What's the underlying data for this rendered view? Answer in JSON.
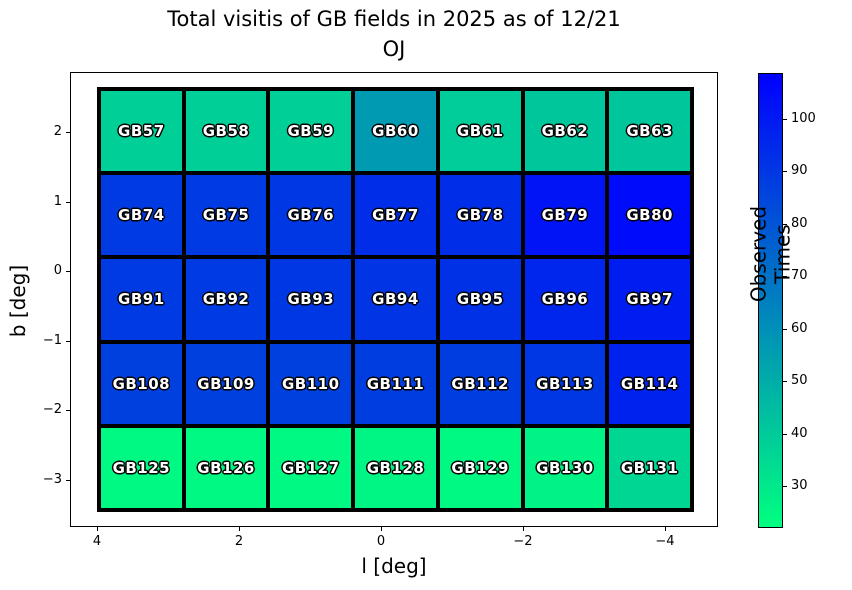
{
  "chart_data": {
    "type": "heatmap",
    "title_line1": "Total visitis of GB fields in 2025 as of 12/21",
    "title_line2": "OJ",
    "xlabel": "l [deg]",
    "ylabel": "b [deg]",
    "colorbar_label": "Observed Times",
    "colormap": "winter_r",
    "vmin": 22,
    "vmax": 108.7,
    "x_axis_ticks": [
      "4",
      "2",
      "0",
      "−2",
      "−4"
    ],
    "y_axis_ticks": [
      "2",
      "1",
      "0",
      "−1",
      "−2",
      "−3"
    ],
    "colorbar_ticks": [
      100,
      90,
      80,
      70,
      60,
      50,
      40,
      30
    ],
    "colorbar_top_color": "#0000ff",
    "colorbar_bottom_color": "#00ff80",
    "rows": [
      {
        "cells": [
          {
            "label": "GB57",
            "value": 38
          },
          {
            "label": "GB58",
            "value": 38
          },
          {
            "label": "GB59",
            "value": 38
          },
          {
            "label": "GB60",
            "value": 56
          },
          {
            "label": "GB61",
            "value": 39
          },
          {
            "label": "GB62",
            "value": 41
          },
          {
            "label": "GB63",
            "value": 41
          }
        ]
      },
      {
        "cells": [
          {
            "label": "GB74",
            "value": 89
          },
          {
            "label": "GB75",
            "value": 89
          },
          {
            "label": "GB76",
            "value": 90
          },
          {
            "label": "GB77",
            "value": 93
          },
          {
            "label": "GB78",
            "value": 93
          },
          {
            "label": "GB79",
            "value": 102
          },
          {
            "label": "GB80",
            "value": 105
          }
        ]
      },
      {
        "cells": [
          {
            "label": "GB91",
            "value": 89
          },
          {
            "label": "GB92",
            "value": 89
          },
          {
            "label": "GB93",
            "value": 90
          },
          {
            "label": "GB94",
            "value": 91
          },
          {
            "label": "GB95",
            "value": 92
          },
          {
            "label": "GB96",
            "value": 96
          },
          {
            "label": "GB97",
            "value": 99
          }
        ]
      },
      {
        "cells": [
          {
            "label": "GB108",
            "value": 87
          },
          {
            "label": "GB109",
            "value": 87
          },
          {
            "label": "GB110",
            "value": 87
          },
          {
            "label": "GB111",
            "value": 88
          },
          {
            "label": "GB112",
            "value": 88
          },
          {
            "label": "GB113",
            "value": 90
          },
          {
            "label": "GB114",
            "value": 97
          }
        ]
      },
      {
        "cells": [
          {
            "label": "GB125",
            "value": 24
          },
          {
            "label": "GB126",
            "value": 24
          },
          {
            "label": "GB127",
            "value": 24
          },
          {
            "label": "GB128",
            "value": 25
          },
          {
            "label": "GB129",
            "value": 24
          },
          {
            "label": "GB130",
            "value": 26
          },
          {
            "label": "GB131",
            "value": 36
          }
        ]
      }
    ]
  }
}
